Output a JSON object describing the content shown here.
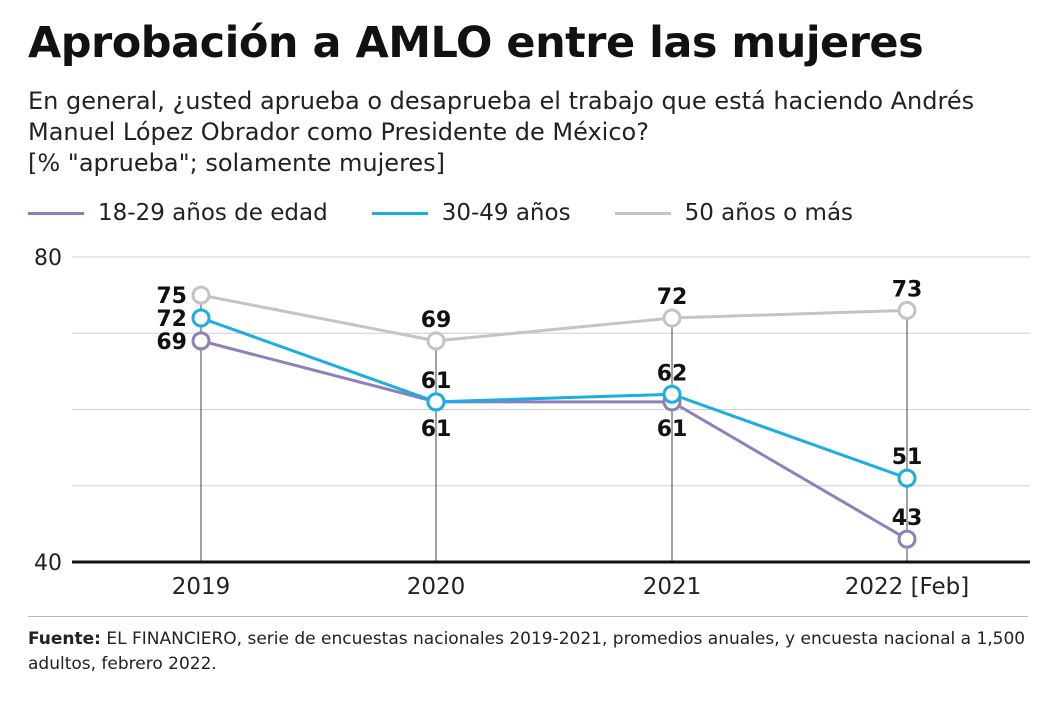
{
  "title": "Aprobación a AMLO entre las mujeres",
  "subtitle_lines": [
    "En general, ¿usted aprueba o desaprueba el trabajo que está haciendo Andrés",
    "Manuel López Obrador como Presidente de México?",
    "[% \"aprueba\"; solamente mujeres]"
  ],
  "source": {
    "label": "Fuente:",
    "text": " EL FINANCIERO, serie de encuestas nacionales 2019-2021, promedios anuales, y encuesta nacional a 1,500 adultos, febrero 2022."
  },
  "chart_data": {
    "type": "line",
    "categories": [
      "2019",
      "2020",
      "2021",
      "2022 [Feb]"
    ],
    "ylim": [
      40,
      80
    ],
    "y_ticks_labeled": [
      80,
      40
    ],
    "y_gridlines": [
      50,
      60,
      70,
      80
    ],
    "grid": true,
    "legend_position": "top-left",
    "series": [
      {
        "name": "18-29 años de edad",
        "color": "#8f7fba",
        "values": [
          69,
          61,
          61,
          43
        ]
      },
      {
        "name": "30-49 años",
        "color": "#1aaee2",
        "values": [
          72,
          61,
          62,
          51
        ]
      },
      {
        "name": "50 años o más",
        "color": "#c4c4c4",
        "values": [
          75,
          69,
          72,
          73
        ]
      }
    ]
  }
}
